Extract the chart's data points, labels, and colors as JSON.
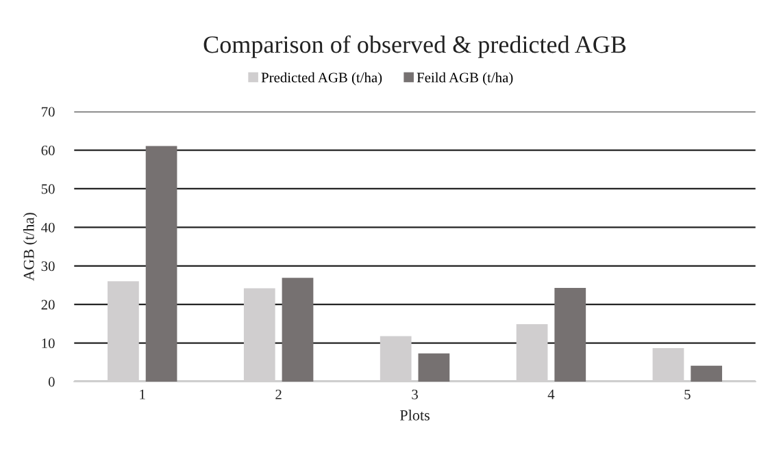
{
  "chart_data": {
    "type": "bar",
    "title": "Comparison of observed & predicted AGB",
    "xlabel": "Plots",
    "ylabel": "AGB (t/ha)",
    "categories": [
      "1",
      "2",
      "3",
      "4",
      "5"
    ],
    "series": [
      {
        "name": "Predicted AGB (t/ha)",
        "color": "#d0cecf",
        "values": [
          26.0,
          24.2,
          11.8,
          14.9,
          8.7
        ]
      },
      {
        "name": "Feild AGB (t/ha)",
        "color": "#767171",
        "values": [
          61.1,
          26.9,
          7.3,
          24.3,
          4.1
        ]
      }
    ],
    "ylim": [
      0,
      70
    ],
    "yticks": [
      0,
      10,
      20,
      30,
      40,
      50,
      60,
      70
    ],
    "grid": "y",
    "legend": "top"
  }
}
